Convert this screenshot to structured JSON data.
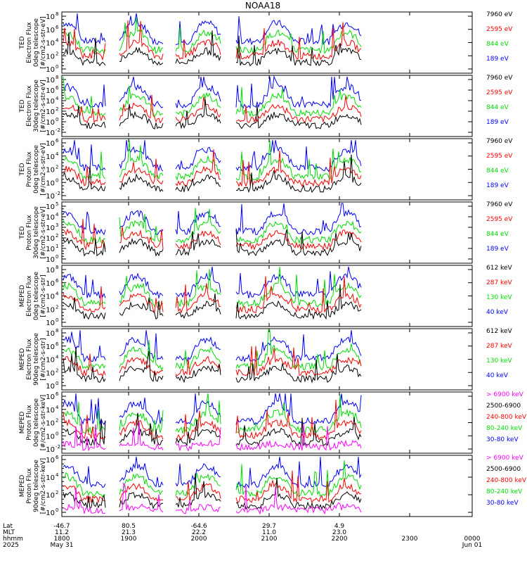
{
  "title": "NOAA18",
  "colors": {
    "black": "#000000",
    "red": "#ff0000",
    "green": "#00dd00",
    "blue": "#0000ff",
    "magenta": "#ff00ff",
    "axis": "#000000"
  },
  "chart_data": [
    {
      "type": "line",
      "panel": "ted-electron-0deg",
      "ylabel": [
        "TED",
        "Electron Flux",
        "0deg telescope",
        "[#/cm2-s-str-eV]"
      ],
      "ticks": [
        {
          "base": "10",
          "exp": "0"
        },
        {
          "base": "10",
          "exp": "2"
        },
        {
          "base": "10",
          "exp": "4"
        },
        {
          "base": "10",
          "exp": "6"
        },
        {
          "base": "10",
          "exp": "8"
        }
      ],
      "yrange_exp": [
        0,
        8
      ],
      "legend": [
        {
          "label": "7960 eV",
          "color": "black"
        },
        {
          "label": "2595 eV",
          "color": "red"
        },
        {
          "label": "844 eV",
          "color": "green"
        },
        {
          "label": "189 eV",
          "color": "blue"
        }
      ]
    },
    {
      "type": "line",
      "panel": "ted-electron-30deg",
      "ylabel": [
        "TED",
        "Electron Flux",
        "30deg telescope",
        "[#/cm2-s-str-eV]"
      ],
      "ticks": [
        {
          "base": "10",
          "exp": "-2"
        },
        {
          "base": "10",
          "exp": "0"
        },
        {
          "base": "10",
          "exp": "2"
        },
        {
          "base": "10",
          "exp": "4"
        },
        {
          "base": "10",
          "exp": "6"
        },
        {
          "base": "10",
          "exp": "8"
        }
      ],
      "yrange_exp": [
        -2,
        8
      ],
      "legend": [
        {
          "label": "7960 eV",
          "color": "black"
        },
        {
          "label": "2595 eV",
          "color": "red"
        },
        {
          "label": "844 eV",
          "color": "green"
        },
        {
          "label": "189 eV",
          "color": "blue"
        }
      ]
    },
    {
      "type": "line",
      "panel": "ted-proton-0deg",
      "ylabel": [
        "TED",
        "Proton Flux",
        "0deg telescope",
        "[#/cm2-s-str-eV]"
      ],
      "ticks": [
        {
          "base": "10",
          "exp": "-2"
        },
        {
          "base": "10",
          "exp": "0"
        },
        {
          "base": "10",
          "exp": "2"
        },
        {
          "base": "10",
          "exp": "4"
        },
        {
          "base": "10",
          "exp": "6"
        }
      ],
      "yrange_exp": [
        -2,
        6
      ],
      "legend": [
        {
          "label": "7960 eV",
          "color": "black"
        },
        {
          "label": "2595 eV",
          "color": "red"
        },
        {
          "label": "844 eV",
          "color": "green"
        },
        {
          "label": "189 eV",
          "color": "blue"
        }
      ]
    },
    {
      "type": "line",
      "panel": "ted-proton-30deg",
      "ylabel": [
        "TED",
        "Proton Flux",
        "30deg telescope",
        "[#/cm2-s-str-eV]"
      ],
      "ticks": [
        {
          "base": "10",
          "exp": "0"
        },
        {
          "base": "10",
          "exp": "1"
        },
        {
          "base": "10",
          "exp": "2"
        },
        {
          "base": "10",
          "exp": "3"
        },
        {
          "base": "10",
          "exp": "4"
        },
        {
          "base": "10",
          "exp": "5"
        }
      ],
      "yrange_exp": [
        0,
        5
      ],
      "legend": [
        {
          "label": "7960 eV",
          "color": "black"
        },
        {
          "label": "2595 eV",
          "color": "red"
        },
        {
          "label": "844 eV",
          "color": "green"
        },
        {
          "label": "189 eV",
          "color": "blue"
        }
      ]
    },
    {
      "type": "line",
      "panel": "meped-electron-0deg",
      "ylabel": [
        "MEPED",
        "Electron Flux",
        "0deg telescope",
        "[#/cm2-s-str]"
      ],
      "ticks": [
        {
          "base": "10",
          "exp": "0"
        },
        {
          "base": "10",
          "exp": "2"
        },
        {
          "base": "10",
          "exp": "4"
        },
        {
          "base": "10",
          "exp": "6"
        },
        {
          "base": "10",
          "exp": "8"
        }
      ],
      "yrange_exp": [
        0,
        8
      ],
      "legend": [
        {
          "label": "612 keV",
          "color": "black"
        },
        {
          "label": "287 keV",
          "color": "red"
        },
        {
          "label": "130 keV",
          "color": "green"
        },
        {
          "label": "40 keV",
          "color": "blue"
        }
      ]
    },
    {
      "type": "line",
      "panel": "meped-electron-90deg",
      "ylabel": [
        "MEPED",
        "Electron Flux",
        "90deg telescope",
        "[#/cm2-s-str]"
      ],
      "ticks": [
        {
          "base": "10",
          "exp": "0"
        },
        {
          "base": "10",
          "exp": "2"
        },
        {
          "base": "10",
          "exp": "4"
        },
        {
          "base": "10",
          "exp": "6"
        },
        {
          "base": "10",
          "exp": "8"
        }
      ],
      "yrange_exp": [
        0,
        8
      ],
      "legend": [
        {
          "label": "612 keV",
          "color": "black"
        },
        {
          "label": "287 keV",
          "color": "red"
        },
        {
          "label": "130 keV",
          "color": "green"
        },
        {
          "label": "40 keV",
          "color": "blue"
        }
      ]
    },
    {
      "type": "line",
      "panel": "meped-proton-0deg",
      "ylabel": [
        "MEPED",
        "Proton Flux",
        "0deg telescope",
        "[#/cm2-s-str-keV]"
      ],
      "ticks": [
        {
          "base": "10",
          "exp": "-2"
        },
        {
          "base": "10",
          "exp": "0"
        },
        {
          "base": "10",
          "exp": "2"
        },
        {
          "base": "10",
          "exp": "4"
        },
        {
          "base": "10",
          "exp": "6"
        }
      ],
      "yrange_exp": [
        -2,
        6
      ],
      "legend": [
        {
          "label": "> 6900 keV",
          "color": "magenta"
        },
        {
          "label": "2500-6900",
          "color": "black"
        },
        {
          "label": "240-800 keV",
          "color": "red"
        },
        {
          "label": "80-240 keV",
          "color": "green"
        },
        {
          "label": "30-80 keV",
          "color": "blue"
        }
      ]
    },
    {
      "type": "line",
      "panel": "meped-proton-90deg",
      "ylabel": [
        "MEPED",
        "Proton Flux",
        "90deg telescope",
        "[#/cm2-s-str-keV]"
      ],
      "ticks": [
        {
          "base": "10",
          "exp": "0"
        },
        {
          "base": "10",
          "exp": "2"
        },
        {
          "base": "10",
          "exp": "4"
        },
        {
          "base": "10",
          "exp": "6"
        }
      ],
      "yrange_exp": [
        -1,
        7
      ],
      "legend": [
        {
          "label": "> 6900 keV",
          "color": "magenta"
        },
        {
          "label": "2500-6900",
          "color": "black"
        },
        {
          "label": "240-800 keV",
          "color": "red"
        },
        {
          "label": "80-240 keV",
          "color": "green"
        },
        {
          "label": "30-80 keV",
          "color": "blue"
        }
      ]
    }
  ],
  "x_axis": {
    "row_labels": [
      "Lat",
      "MLT",
      "hhmm",
      "2025"
    ],
    "columns": [
      {
        "lat": "-46.7",
        "mlt": "11.2",
        "hhmm": "1800",
        "date": "May 31"
      },
      {
        "lat": "80.5",
        "mlt": "21.3",
        "hhmm": "1900",
        "date": ""
      },
      {
        "lat": "-64.6",
        "mlt": "22.2",
        "hhmm": "2000",
        "date": ""
      },
      {
        "lat": "29.7",
        "mlt": "11.0",
        "hhmm": "2100",
        "date": ""
      },
      {
        "lat": "4.9",
        "mlt": "23.0",
        "hhmm": "2200",
        "date": ""
      },
      {
        "lat": "",
        "mlt": "",
        "hhmm": "2300",
        "date": ""
      },
      {
        "lat": "",
        "mlt": "",
        "hhmm": "0000",
        "date": "Jun 01"
      }
    ]
  }
}
